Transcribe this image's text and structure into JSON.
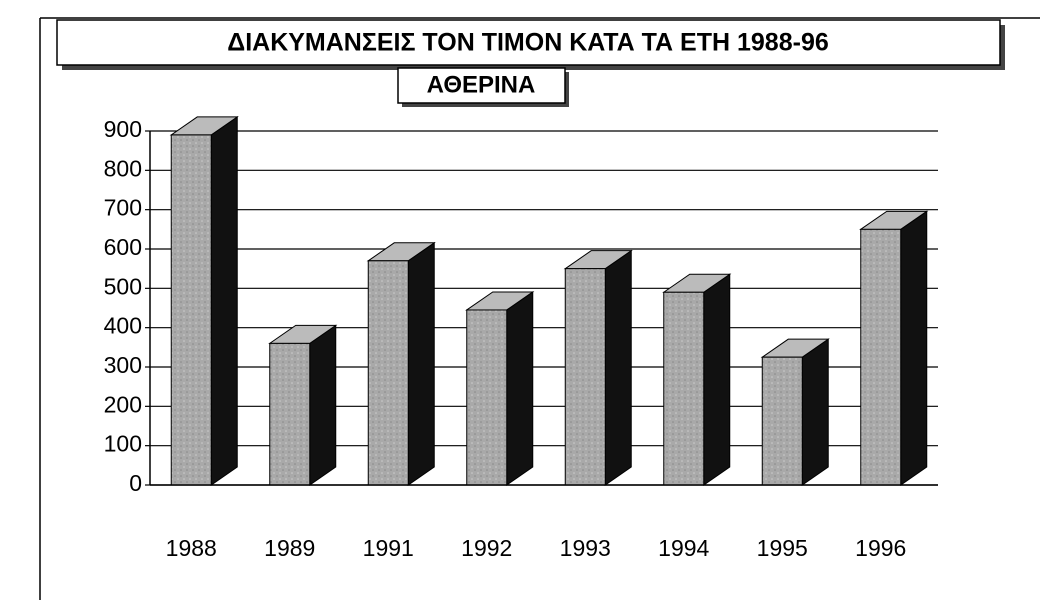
{
  "chart_data": {
    "type": "bar3d",
    "title": "ΔΙΑΚΥΜΑΝΣΕΙΣ ΤΟΝ ΤΙΜΟΝ ΚΑΤΑ ΤΑ ΕΤΗ 1988-96",
    "subtitle": "ΑΘΕΡΙΝΑ",
    "categories": [
      "1988",
      "1989",
      "1991",
      "1992",
      "1993",
      "1994",
      "1995",
      "1996"
    ],
    "values": [
      890,
      360,
      570,
      445,
      550,
      490,
      325,
      650
    ],
    "color": "#a9a9a9",
    "ylim": [
      0,
      900
    ],
    "yticks": [
      0,
      100,
      200,
      300,
      400,
      500,
      600,
      700,
      800,
      900
    ],
    "grid": true
  }
}
